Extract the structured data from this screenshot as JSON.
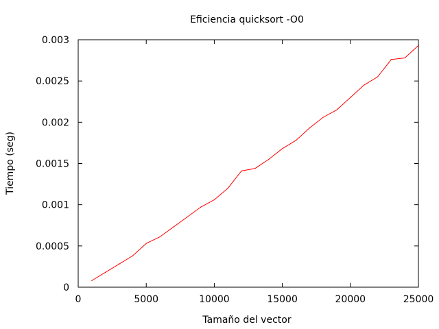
{
  "chart_data": {
    "type": "line",
    "title": "Eficiencia quicksort -O0",
    "xlabel": "Tamaño del vector",
    "ylabel": "Tiempo (seg)",
    "xlim": [
      0,
      25000
    ],
    "ylim": [
      0,
      0.003
    ],
    "xticks": [
      0,
      5000,
      10000,
      15000,
      20000,
      25000
    ],
    "xtick_labels": [
      "0",
      "5000",
      "10000",
      "15000",
      "20000",
      "25000"
    ],
    "yticks": [
      0,
      0.0005,
      0.001,
      0.0015,
      0.002,
      0.0025,
      0.003
    ],
    "ytick_labels": [
      "0",
      "0.0005",
      "0.001",
      "0.0015",
      "0.002",
      "0.0025",
      "0.003"
    ],
    "grid": false,
    "legend": "none",
    "series": [
      {
        "color": "#ff0000",
        "x": [
          1000,
          2000,
          3000,
          4000,
          5000,
          6000,
          7000,
          8000,
          9000,
          10000,
          11000,
          12000,
          13000,
          14000,
          15000,
          16000,
          17000,
          18000,
          19000,
          20000,
          21000,
          22000,
          23000,
          24000,
          25000
        ],
        "y": [
          8e-05,
          0.00018,
          0.00028,
          0.00038,
          0.00053,
          0.00061,
          0.00073,
          0.00085,
          0.00097,
          0.00106,
          0.0012,
          0.00141,
          0.00144,
          0.00155,
          0.00168,
          0.00178,
          0.00193,
          0.00206,
          0.00215,
          0.0023,
          0.00245,
          0.00255,
          0.00276,
          0.00278,
          0.00293
        ]
      }
    ]
  }
}
